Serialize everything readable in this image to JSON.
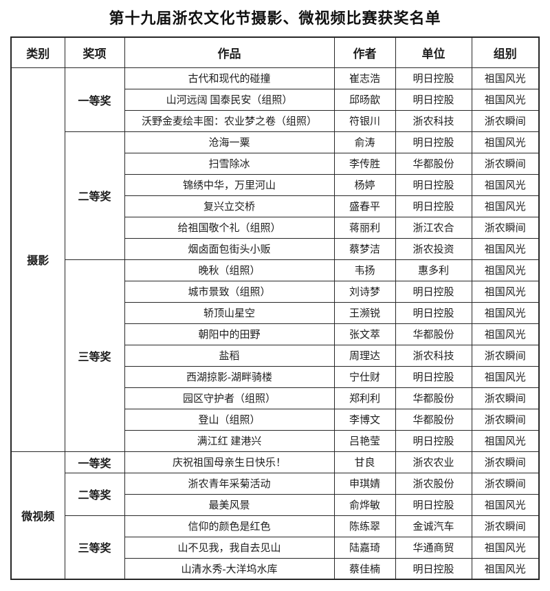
{
  "page": {
    "title": "第十九届浙农文化节摄影、微视频比赛获奖名单"
  },
  "colors": {
    "text": "#1c1c1c",
    "border": "#262626",
    "background": "#ffffff"
  },
  "table": {
    "headers": [
      "类别",
      "奖项",
      "作品",
      "作者",
      "单位",
      "组别"
    ],
    "sections": [
      {
        "category": "摄影",
        "groups": [
          {
            "award": "一等奖",
            "rows": [
              {
                "work": "古代和现代的碰撞",
                "author": "崔志浩",
                "unit": "明日控股",
                "group": "祖国风光"
              },
              {
                "work": "山河远阔 国泰民安（组照）",
                "author": "邱旸歆",
                "unit": "明日控股",
                "group": "祖国风光"
              },
              {
                "work": "沃野金麦绘丰图：农业梦之卷（组照）",
                "author": "符银川",
                "unit": "浙农科技",
                "group": "浙农瞬间"
              }
            ]
          },
          {
            "award": "二等奖",
            "rows": [
              {
                "work": "沧海一粟",
                "author": "俞涛",
                "unit": "明日控股",
                "group": "祖国风光"
              },
              {
                "work": "扫雪除冰",
                "author": "李传胜",
                "unit": "华都股份",
                "group": "浙农瞬间"
              },
              {
                "work": "锦绣中华，万里河山",
                "author": "杨婷",
                "unit": "明日控股",
                "group": "祖国风光"
              },
              {
                "work": "复兴立交桥",
                "author": "盛春平",
                "unit": "明日控股",
                "group": "祖国风光"
              },
              {
                "work": "给祖国敬个礼（组照）",
                "author": "蒋丽利",
                "unit": "浙江农合",
                "group": "浙农瞬间"
              },
              {
                "work": "烟卤面包街头小贩",
                "author": "蔡梦洁",
                "unit": "浙农投资",
                "group": "祖国风光"
              }
            ]
          },
          {
            "award": "三等奖",
            "rows": [
              {
                "work": "晚秋（组照）",
                "author": "韦扬",
                "unit": "惠多利",
                "group": "祖国风光"
              },
              {
                "work": "城市景致（组照）",
                "author": "刘诗梦",
                "unit": "明日控股",
                "group": "祖国风光"
              },
              {
                "work": "轿顶山星空",
                "author": "王濒锐",
                "unit": "明日控股",
                "group": "祖国风光"
              },
              {
                "work": "朝阳中的田野",
                "author": "张文萃",
                "unit": "华都股份",
                "group": "祖国风光"
              },
              {
                "work": "盐稻",
                "author": "周理达",
                "unit": "浙农科技",
                "group": "浙农瞬间"
              },
              {
                "work": "西湖掠影-湖畔骑楼",
                "author": "宁仕财",
                "unit": "明日控股",
                "group": "祖国风光"
              },
              {
                "work": "园区守护者（组照）",
                "author": "郑利利",
                "unit": "华都股份",
                "group": "浙农瞬间"
              },
              {
                "work": "登山（组照）",
                "author": "李博文",
                "unit": "华都股份",
                "group": "浙农瞬间"
              },
              {
                "work": "满江红 建港兴",
                "author": "吕艳莹",
                "unit": "明日控股",
                "group": "祖国风光"
              }
            ]
          }
        ]
      },
      {
        "category": "微视频",
        "groups": [
          {
            "award": "一等奖",
            "rows": [
              {
                "work": "庆祝祖国母亲生日快乐！",
                "author": "甘良",
                "unit": "浙农农业",
                "group": "浙农瞬间"
              }
            ]
          },
          {
            "award": "二等奖",
            "rows": [
              {
                "work": "浙农青年采菊活动",
                "author": "申琪婧",
                "unit": "浙农股份",
                "group": "浙农瞬间"
              },
              {
                "work": "最美风景",
                "author": "俞烨敏",
                "unit": "明日控股",
                "group": "祖国风光"
              }
            ]
          },
          {
            "award": "三等奖",
            "rows": [
              {
                "work": "信仰的颜色是红色",
                "author": "陈练翠",
                "unit": "金诚汽车",
                "group": "浙农瞬间"
              },
              {
                "work": "山不见我，我自去见山",
                "author": "陆嘉琦",
                "unit": "华通商贸",
                "group": "祖国风光"
              },
              {
                "work": "山清水秀-大洋坞水库",
                "author": "蔡佳楠",
                "unit": "明日控股",
                "group": "祖国风光"
              }
            ]
          }
        ]
      }
    ]
  }
}
